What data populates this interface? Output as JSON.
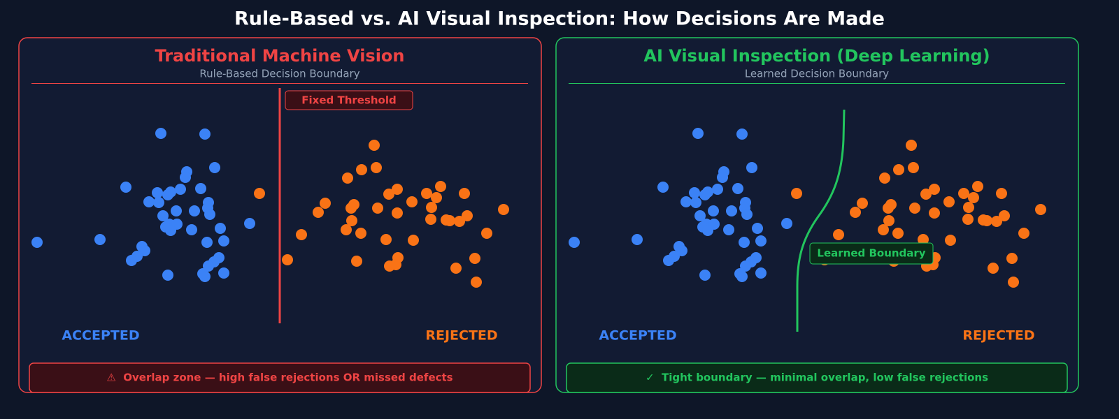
{
  "title": "Rule-Based vs. AI Visual Inspection: How Decisions Are Made",
  "chart_data": [
    {
      "type": "scatter",
      "title": "Traditional Machine Vision",
      "subtitle": "Rule-Based Decision Boundary",
      "color": "#ef4444",
      "annotation": "Fixed Threshold",
      "footer": "⚠  Overlap zone — high false rejections OR missed defects",
      "xlim": [
        0,
        710
      ],
      "ylim": [
        0,
        340
      ],
      "series": [
        {
          "name": "ACCEPTED",
          "color": "#3b82f6",
          "x": [
            185,
            248,
            262,
            222,
            220,
            135,
            213,
            242,
            180,
            199,
            195,
            168,
            182,
            253,
            252,
            207,
            233,
            188,
            255,
            312,
            197,
            208,
            192,
            199,
            229,
            270,
            8,
            98,
            251,
            275,
            158,
            162,
            151,
            143,
            268,
            261,
            253,
            195,
            245,
            248,
            275
          ],
          "y": [
            274,
            273,
            225,
            219,
            211,
            197,
            194,
            195,
            189,
            190,
            186,
            176,
            175,
            175,
            167,
            163,
            163,
            156,
            158,
            145,
            144,
            144,
            140,
            135,
            136,
            138,
            118,
            122,
            118,
            120,
            112,
            106,
            98,
            92,
            96,
            90,
            84,
            71,
            73,
            69,
            74
          ]
        },
        {
          "name": "REJECTED",
          "color": "#f97316",
          "x": [
            490,
            493,
            472,
            452,
            326,
            585,
            523,
            511,
            565,
            619,
            579,
            420,
            544,
            461,
            457,
            495,
            410,
            572,
            523,
            675,
            623,
            458,
            571,
            593,
            598,
            612,
            450,
            471,
            386,
            651,
            507,
            546,
            366,
            465,
            524,
            634,
            512,
            521,
            607,
            636
          ],
          "y": [
            257,
            225,
            222,
            210,
            188,
            198,
            194,
            187,
            188,
            188,
            182,
            174,
            176,
            172,
            167,
            167,
            161,
            168,
            160,
            165,
            156,
            149,
            151,
            150,
            149,
            148,
            136,
            131,
            129,
            131,
            122,
            121,
            93,
            91,
            96,
            95,
            84,
            86,
            81,
            61
          ]
        }
      ]
    },
    {
      "type": "scatter",
      "title": "AI Visual Inspection (Deep Learning)",
      "subtitle": "Learned Decision Boundary",
      "color": "#22c55e",
      "annotation": "Learned Boundary",
      "footer": "✓  Tight boundary — minimal overlap, low false rejections",
      "xlim": [
        0,
        710
      ],
      "ylim": [
        0,
        340
      ],
      "series": [
        {
          "name": "ACCEPTED",
          "color": "#3b82f6",
          "x": [
            185,
            248,
            262,
            222,
            220,
            135,
            213,
            242,
            180,
            199,
            195,
            168,
            182,
            253,
            252,
            207,
            233,
            188,
            255,
            312,
            197,
            208,
            192,
            199,
            229,
            270,
            8,
            98,
            251,
            275,
            158,
            162,
            151,
            143,
            268,
            261,
            253,
            195,
            245,
            248,
            275
          ],
          "y": [
            274,
            273,
            225,
            219,
            211,
            197,
            194,
            195,
            189,
            190,
            186,
            176,
            175,
            175,
            167,
            163,
            163,
            156,
            158,
            145,
            144,
            144,
            140,
            135,
            136,
            138,
            118,
            122,
            118,
            120,
            112,
            106,
            98,
            92,
            96,
            90,
            84,
            71,
            73,
            69,
            74
          ]
        },
        {
          "name": "REJECTED",
          "color": "#f97316",
          "x": [
            490,
            493,
            472,
            452,
            326,
            585,
            523,
            511,
            565,
            619,
            579,
            420,
            544,
            461,
            457,
            495,
            410,
            572,
            523,
            675,
            623,
            458,
            571,
            593,
            598,
            612,
            450,
            471,
            386,
            651,
            507,
            546,
            366,
            465,
            524,
            634,
            512,
            521,
            607,
            636
          ],
          "y": [
            257,
            225,
            222,
            210,
            188,
            198,
            194,
            187,
            188,
            188,
            182,
            174,
            176,
            172,
            167,
            167,
            161,
            168,
            160,
            165,
            156,
            149,
            151,
            150,
            149,
            148,
            136,
            131,
            129,
            131,
            122,
            121,
            93,
            91,
            96,
            95,
            84,
            86,
            81,
            61
          ]
        }
      ]
    }
  ]
}
